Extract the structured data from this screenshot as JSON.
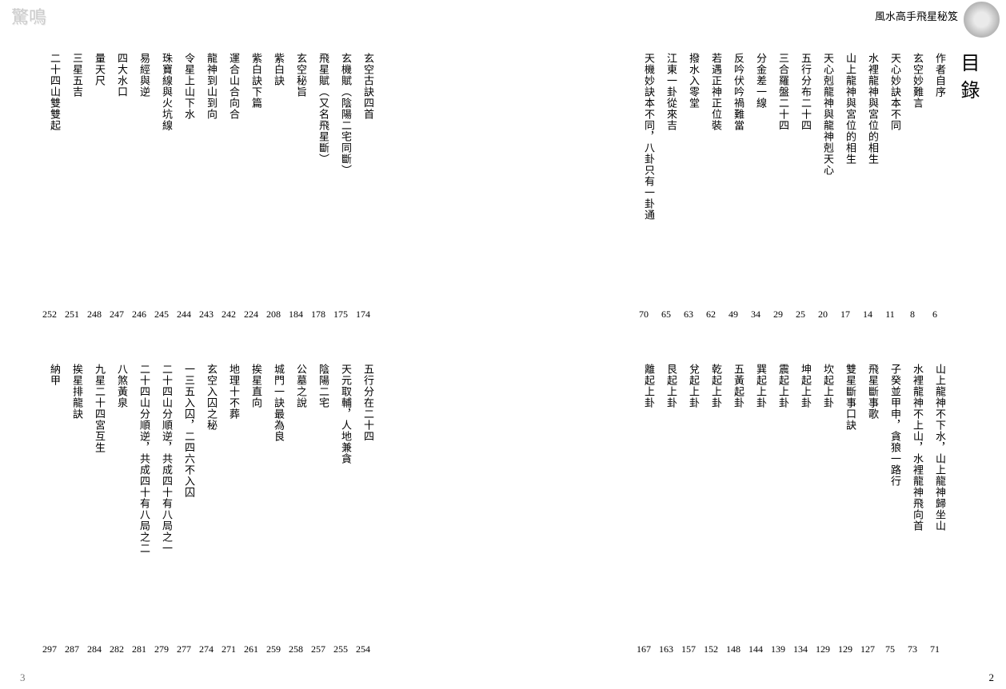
{
  "header_right": "風水高手飛星秘笈",
  "header_left": "驚鳴",
  "toc_heading": "目錄",
  "page_num_right": "2",
  "page_num_left": "3",
  "sections": {
    "a": [
      {
        "title": "作者自序",
        "page": "6"
      },
      {
        "title": "玄空妙難言",
        "page": "8"
      },
      {
        "title": "天心妙訣本不同",
        "page": "11"
      },
      {
        "title": "水裡龍神與宮位的相生",
        "page": "14"
      },
      {
        "title": "山上龍神與宮位的相生",
        "page": "17"
      },
      {
        "title": "天心剋龍神與龍神剋天心",
        "page": "20"
      },
      {
        "title": "五行分布二十四",
        "page": "25"
      },
      {
        "title": "三合羅盤二十四",
        "page": "29"
      },
      {
        "title": "分金差一線",
        "page": "34"
      },
      {
        "title": "反吟伏吟禍難當",
        "page": "49"
      },
      {
        "title": "若遇正神正位裝",
        "page": "62"
      },
      {
        "title": "撥水入零堂",
        "page": "63"
      },
      {
        "title": "江東一卦從來吉",
        "page": "65"
      },
      {
        "title": "天機妙訣本不同，八卦只有一卦通",
        "page": "70"
      }
    ],
    "b": [
      {
        "title": "山上龍神不下水，山上龍神歸坐山",
        "page": "71"
      },
      {
        "title": "水裡龍神不上山，水裡龍神飛向首",
        "page": "73"
      },
      {
        "title": "子癸並甲申，貪狼一路行",
        "page": "75"
      },
      {
        "title": "飛星斷事歌",
        "page": "127"
      },
      {
        "title": "雙星斷事口訣",
        "page": "129"
      },
      {
        "title": "坎起上卦",
        "page": "129"
      },
      {
        "title": "坤起上卦",
        "page": "134"
      },
      {
        "title": "震起上卦",
        "page": "139"
      },
      {
        "title": "巽起上卦",
        "page": "144"
      },
      {
        "title": "五黃起卦",
        "page": "148"
      },
      {
        "title": "乾起上卦",
        "page": "152"
      },
      {
        "title": "兌起上卦",
        "page": "157"
      },
      {
        "title": "艮起上卦",
        "page": "163"
      },
      {
        "title": "離起上卦",
        "page": "167"
      }
    ],
    "c": [
      {
        "title": "玄空古訣四首",
        "page": "174"
      },
      {
        "title": "玄機賦︵陰陽二宅同斷︶",
        "page": "175"
      },
      {
        "title": "飛星賦︵又名飛星斷︶",
        "page": "178"
      },
      {
        "title": "玄空秘旨",
        "page": "184"
      },
      {
        "title": "紫白訣",
        "page": "208"
      },
      {
        "title": "紫白訣下篇",
        "page": "224"
      },
      {
        "title": "運合山合向合",
        "page": "242"
      },
      {
        "title": "龍神到山到向",
        "page": "243"
      },
      {
        "title": "令星上山下水",
        "page": "244"
      },
      {
        "title": "珠寶線與火坑線",
        "page": "245"
      },
      {
        "title": "易經與逆",
        "page": "246"
      },
      {
        "title": "四大水口",
        "page": "247"
      },
      {
        "title": "量天尺",
        "page": "248"
      },
      {
        "title": "三星五吉",
        "page": "251"
      },
      {
        "title": "二十四山雙雙起",
        "page": "252"
      }
    ],
    "d": [
      {
        "title": "五行分在二十四",
        "page": "254"
      },
      {
        "title": "天元取輔，人地兼貪",
        "page": "255"
      },
      {
        "title": "陰陽二宅",
        "page": "257"
      },
      {
        "title": "公墓之說",
        "page": "258"
      },
      {
        "title": "城門一訣最為良",
        "page": "259"
      },
      {
        "title": "挨星直向",
        "page": "261"
      },
      {
        "title": "地理十不葬",
        "page": "271"
      },
      {
        "title": "玄空入囚之秘",
        "page": "274"
      },
      {
        "title": "一三五入囚，二四六不入囚",
        "page": "277"
      },
      {
        "title": "二十四山分順逆，共成四十有八局之一",
        "page": "279"
      },
      {
        "title": "二十四山分順逆，共成四十有八局之二",
        "page": "281"
      },
      {
        "title": "八煞黃泉",
        "page": "282"
      },
      {
        "title": "九星二十四宮互生",
        "page": "284"
      },
      {
        "title": "挨星排龍訣",
        "page": "287"
      },
      {
        "title": "納甲",
        "page": "297"
      }
    ]
  }
}
